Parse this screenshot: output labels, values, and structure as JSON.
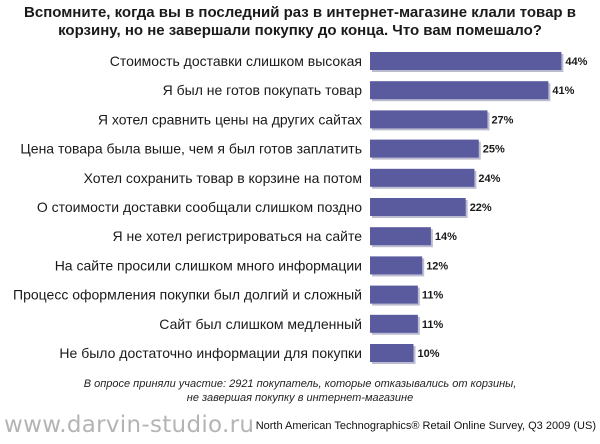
{
  "header": {
    "title_line1": "Вспомните, когда вы в последний раз в интернет-магазине клали товар в",
    "title_line2": "корзину, но не завершали покупку до конца. Что вам помешало?"
  },
  "footer": {
    "note_line1": "В опросе приняли участие: 2921 покупатель, которые отказывались от корзины,",
    "note_line2": "не завершая покупку в интернет-магазине",
    "watermark": "www.darvin-studio.ru",
    "source": "North American Technographics® Retail Online Survey, Q3 2009 (US)"
  },
  "colors": {
    "bar": "#5a5a9e",
    "bar_shadow": "#3f3f78"
  },
  "chart_data": {
    "type": "bar",
    "orientation": "horizontal",
    "title": "Вспомните, когда вы в последний раз в интернет-магазине клали товар в корзину, но не завершали покупку до конца. Что вам помешало?",
    "categories": [
      "Стоимость доставки слишком высокая",
      "Я был не готов покупать товар",
      "Я хотел сравнить цены на других сайтах",
      "Цена товара была выше, чем я был готов заплатить",
      "Хотел сохранить товар в корзине на потом",
      "О стоимости доставки сообщали слишком поздно",
      "Я не хотел регистрироваться на сайте",
      "На сайте просили слишком много информации",
      "Процесс оформления покупки был долгий и сложный",
      "Сайт был слишком медленный",
      "Не было достаточно информации для покупки"
    ],
    "values": [
      44,
      41,
      27,
      25,
      24,
      22,
      14,
      12,
      11,
      11,
      10
    ],
    "value_labels": [
      "44%",
      "41%",
      "27%",
      "25%",
      "24%",
      "22%",
      "14%",
      "12%",
      "11%",
      "11%",
      "10%"
    ],
    "unit": "%",
    "xlim": [
      0,
      45
    ],
    "grid": false,
    "legend": "none"
  }
}
